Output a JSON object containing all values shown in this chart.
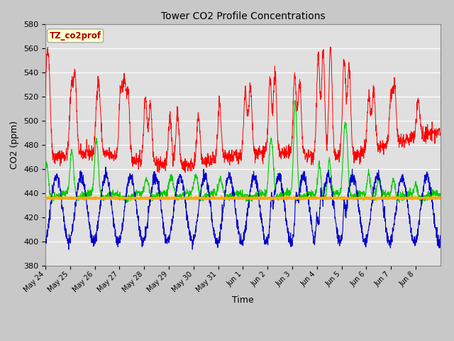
{
  "title": "Tower CO2 Profile Concentrations",
  "xlabel": "Time",
  "ylabel": "CO2 (ppm)",
  "ylim": [
    380,
    580
  ],
  "yticks": [
    380,
    400,
    420,
    440,
    460,
    480,
    500,
    520,
    540,
    560,
    580
  ],
  "annotation_text": "TZ_co2prof",
  "annotation_bg": "#ffffcc",
  "annotation_border": "#aaaaaa",
  "annotation_text_color": "#aa0000",
  "fig_bg_color": "#c8c8c8",
  "plot_bg_color": "#e0e0e0",
  "colors": {
    "0.35m": "#ff0000",
    "1.8m": "#0000cc",
    "6.0m": "#00cc00",
    "23.5m": "#ffaa00"
  },
  "n_points": 2000,
  "x_start": 0,
  "x_end": 15,
  "xtick_labels": [
    "May 24",
    "May 25",
    "May 26",
    "May 27",
    "May 28",
    "May 29",
    "May 30",
    "May 31",
    "Jun 1",
    "Jun 2",
    "Jun 3",
    "Jun 4",
    "Jun 5",
    "Jun 6",
    "Jun 7",
    "Jun 8"
  ],
  "xtick_positions": [
    0,
    1,
    2,
    3,
    4,
    5,
    6,
    7,
    8,
    9,
    10,
    11,
    12,
    13,
    14,
    15
  ],
  "seed": 42
}
